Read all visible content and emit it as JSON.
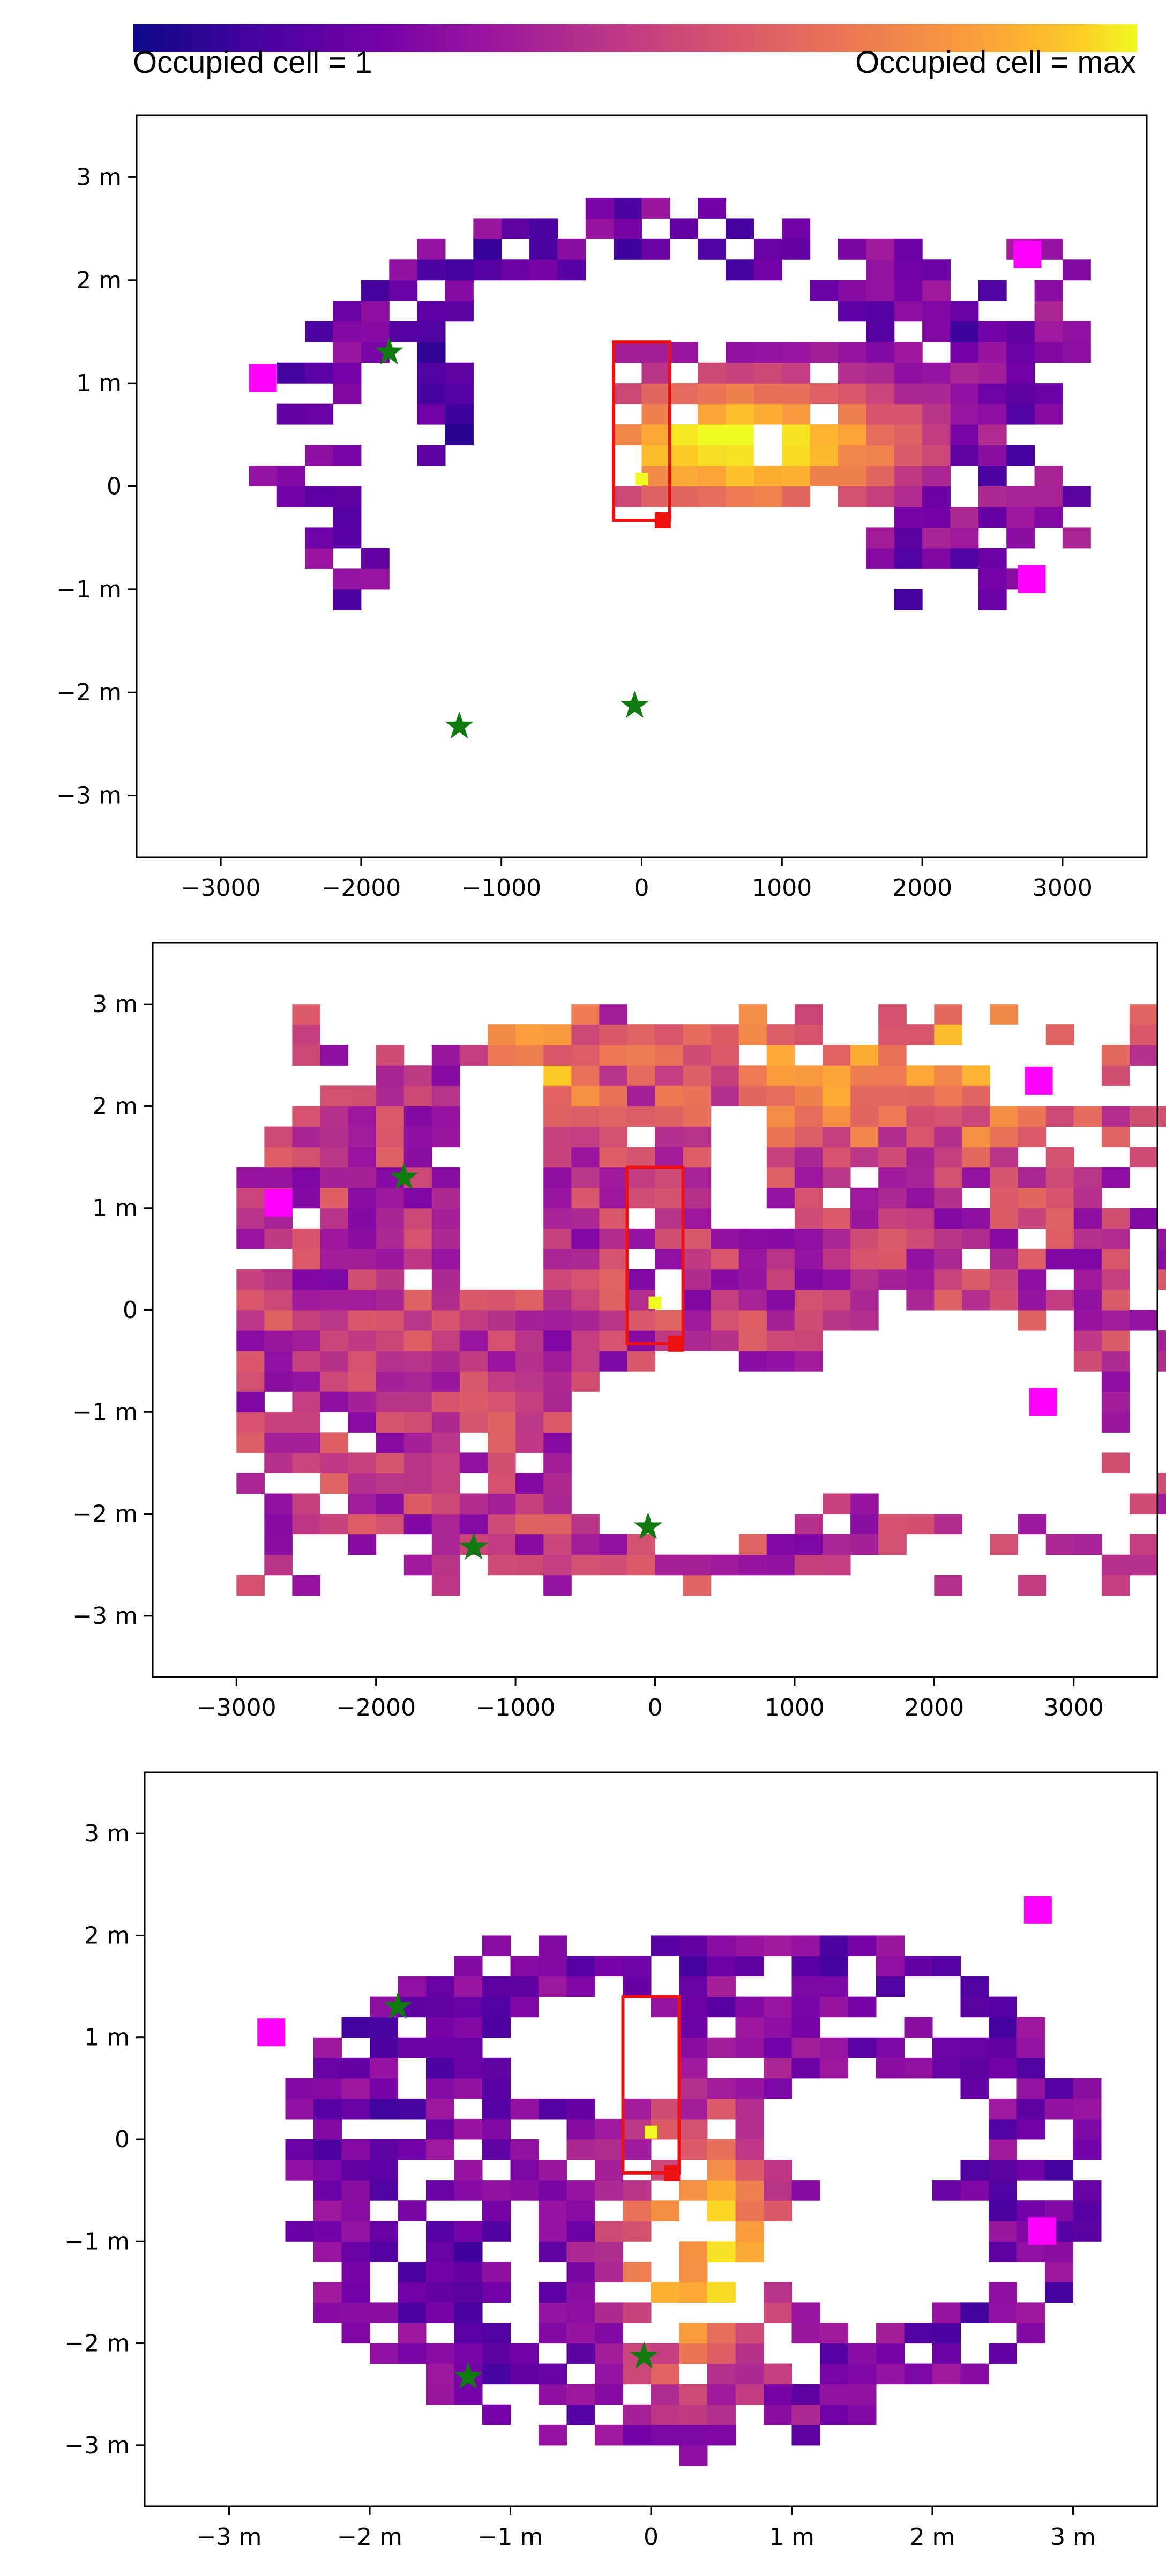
{
  "colorbar": {
    "left_label": "Occupied cell = 1",
    "right_label": "Occupied cell = max",
    "colormap": [
      "#0d0887",
      "#46039f",
      "#7201a8",
      "#9c179e",
      "#bd3786",
      "#d8576b",
      "#ed7953",
      "#fb9f3a",
      "#fdca26",
      "#f0f921"
    ]
  },
  "chart_data": [
    {
      "type": "heatmap",
      "x_range": [
        -3600,
        3600
      ],
      "y_range_m": [
        -3.6,
        3.6
      ],
      "x_tick_labels": [
        "−3000",
        "−2000",
        "−1000",
        "0",
        "1000",
        "2000",
        "3000"
      ],
      "x_tick_values": [
        -3000,
        -2000,
        -1000,
        0,
        1000,
        2000,
        3000
      ],
      "y_tick_labels": [
        "3 m",
        "2 m",
        "1 m",
        "0",
        "−1 m",
        "−2 m",
        "−3 m"
      ],
      "y_tick_values": [
        3,
        2,
        1,
        0,
        -1,
        -2,
        -3
      ],
      "grid": false,
      "markers": {
        "pink_squares": [
          [
            -2700,
            1.05
          ],
          [
            2750,
            2.25
          ],
          [
            2780,
            -0.9
          ]
        ],
        "green_stars": [
          [
            -1800,
            1.3
          ],
          [
            -1300,
            -2.33
          ],
          [
            -50,
            -2.13
          ]
        ],
        "red_rectangle": {
          "x0": -200,
          "x1": 200,
          "y0": -0.33,
          "y1": 1.4
        },
        "red_dot": [
          150,
          -0.33
        ]
      },
      "profile": "sparse_ring"
    },
    {
      "type": "heatmap",
      "x_range": [
        -3600,
        3600
      ],
      "y_range_m": [
        -3.6,
        3.6
      ],
      "x_tick_labels": [
        "−3000",
        "−2000",
        "−1000",
        "0",
        "1000",
        "2000",
        "3000"
      ],
      "x_tick_values": [
        -3000,
        -2000,
        -1000,
        0,
        1000,
        2000,
        3000
      ],
      "y_tick_labels": [
        "3 m",
        "2 m",
        "1 m",
        "0",
        "−1 m",
        "−2 m",
        "−3 m"
      ],
      "y_tick_values": [
        3,
        2,
        1,
        0,
        -1,
        -2,
        -3
      ],
      "grid": false,
      "markers": {
        "pink_squares": [
          [
            -2700,
            1.05
          ],
          [
            2750,
            2.25
          ],
          [
            2780,
            -0.9
          ]
        ],
        "green_stars": [
          [
            -1800,
            1.3
          ],
          [
            -1300,
            -2.33
          ],
          [
            -50,
            -2.13
          ]
        ],
        "red_rectangle": {
          "x0": -200,
          "x1": 200,
          "y0": -0.33,
          "y1": 1.4
        },
        "red_dot": [
          150,
          -0.33
        ]
      },
      "profile": "dense_full"
    },
    {
      "type": "heatmap",
      "x_range": [
        -3.6,
        3.6
      ],
      "y_range_m": [
        -3.6,
        3.6
      ],
      "x_tick_labels": [
        "−3 m",
        "−2 m",
        "−1 m",
        "0",
        "1 m",
        "2 m",
        "3 m"
      ],
      "x_tick_values": [
        -3,
        -2,
        -1,
        0,
        1,
        2,
        3
      ],
      "y_tick_labels": [
        "3 m",
        "2 m",
        "1 m",
        "0",
        "−1 m",
        "−2 m",
        "−3 m"
      ],
      "y_tick_values": [
        3,
        2,
        1,
        0,
        -1,
        -2,
        -3
      ],
      "grid": false,
      "markers": {
        "pink_squares": [
          [
            -2.7,
            1.05
          ],
          [
            2.75,
            2.25
          ],
          [
            2.78,
            -0.9
          ]
        ],
        "green_stars": [
          [
            -1.8,
            1.3
          ],
          [
            -1.3,
            -2.33
          ],
          [
            -0.05,
            -2.13
          ]
        ],
        "red_rectangle": {
          "x0": -0.2,
          "x1": 0.2,
          "y0": -0.33,
          "y1": 1.4
        },
        "red_dot": [
          0.15,
          -0.33
        ]
      },
      "profile": "lower_cone"
    }
  ]
}
